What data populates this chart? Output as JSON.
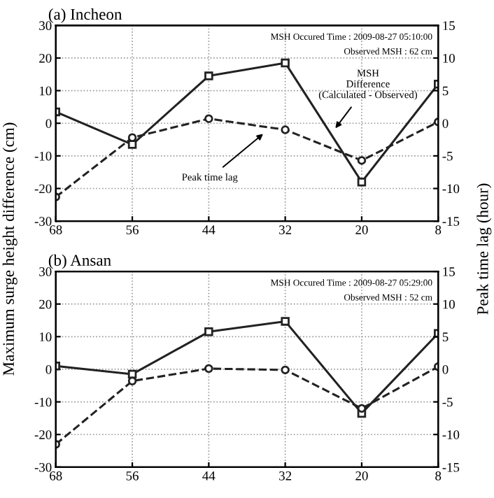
{
  "chart_data": [
    {
      "type": "line",
      "title": "(a) Incheon",
      "ylabel": "Maximum surge height difference (cm)",
      "y2label": "Peak time lag (hour)",
      "x": [
        68,
        56,
        44,
        32,
        20,
        8
      ],
      "xlim": [
        68,
        8
      ],
      "xticks": [
        68,
        56,
        44,
        32,
        20,
        8
      ],
      "ylim": [
        -30,
        30
      ],
      "yticks": [
        -30,
        -20,
        -10,
        0,
        10,
        20,
        30
      ],
      "y2lim": [
        -15,
        15
      ],
      "y2ticks": [
        -15,
        -10,
        -5,
        0,
        5,
        10,
        15
      ],
      "grid": true,
      "series": [
        {
          "color": "#222222",
          "marker": "square",
          "line_style": "solid",
          "values": [
            3.5,
            -6.5,
            14.5,
            18.5,
            -18,
            12
          ]
        },
        {
          "color": "#222222",
          "marker": "circle",
          "line_style": "dashed",
          "axis": "y2",
          "values": [
            -11.3,
            -2.2,
            0.7,
            -1,
            -5.7,
            0.2
          ]
        }
      ],
      "annotations": [
        "MSH Occured Time : 2009-08-27 05:10:00",
        "Observed MSH : 62 cm",
        {
          "text": "MSH\nDifference\n(Calculated - Observed)",
          "x": 24.5,
          "y": -2.5
        },
        {
          "text": "Peak time lag",
          "x": 35,
          "y": -2.5
        }
      ]
    },
    {
      "type": "line",
      "title": "(b) Ansan",
      "x": [
        68,
        56,
        44,
        32,
        20,
        8
      ],
      "xlim": [
        68,
        8
      ],
      "xticks": [
        68,
        56,
        44,
        32,
        20,
        8
      ],
      "ylim": [
        -30,
        30
      ],
      "yticks": [
        -30,
        -20,
        -10,
        0,
        10,
        20,
        30
      ],
      "y2lim": [
        -15,
        15
      ],
      "y2ticks": [
        -15,
        -10,
        -5,
        0,
        5,
        10,
        15
      ],
      "grid": true,
      "series": [
        {
          "color": "#222222",
          "marker": "square",
          "line_style": "solid",
          "values": [
            1,
            -1.5,
            11.5,
            14.7,
            -13.5,
            11
          ]
        },
        {
          "color": "#222222",
          "marker": "circle",
          "line_style": "dashed",
          "axis": "y2",
          "values": [
            -11.5,
            -1.8,
            0.1,
            -0.1,
            -6,
            0.4
          ]
        }
      ],
      "annotations": [
        "MSH Occured Time : 2009-08-27 05:29:00",
        "Observed MSH : 52 cm"
      ]
    }
  ]
}
